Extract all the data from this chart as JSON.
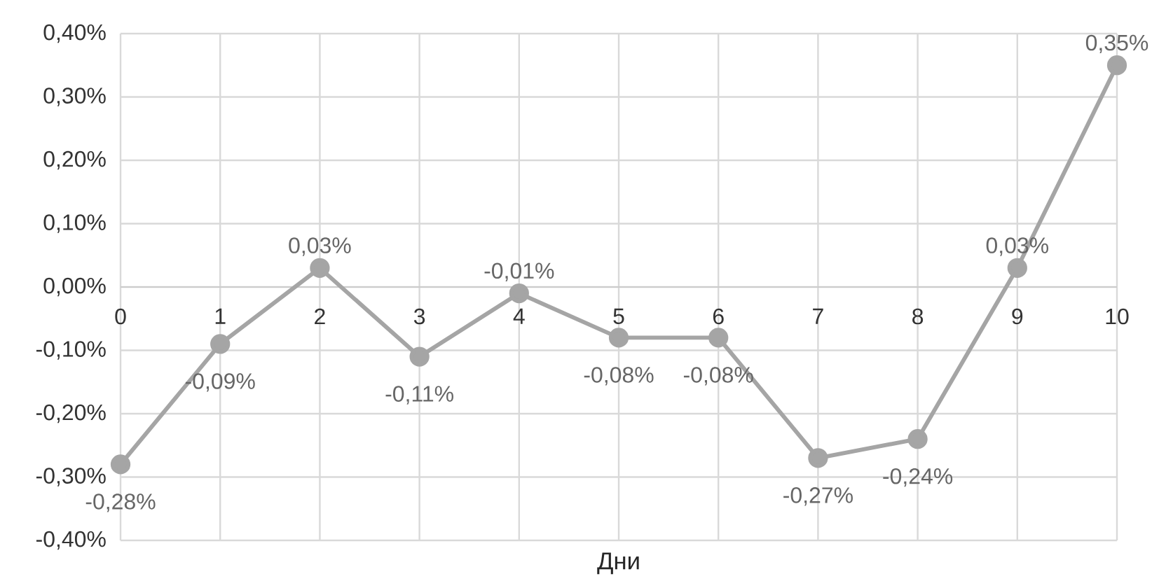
{
  "chart_data": {
    "type": "line",
    "xlabel": "Дни",
    "x": [
      0,
      1,
      2,
      3,
      4,
      5,
      6,
      7,
      8,
      9,
      10
    ],
    "series": [
      {
        "color": "#a5a5a5",
        "values": [
          -0.28,
          -0.09,
          0.03,
          -0.11,
          -0.01,
          -0.08,
          -0.08,
          -0.27,
          -0.24,
          0.03,
          0.35
        ],
        "value_labels": [
          "-0,28%",
          "-0,09%",
          "0,03%",
          "-0,11%",
          "-0,01%",
          "-0,08%",
          "-0,08%",
          "-0,27%",
          "-0,24%",
          "0,03%",
          "0,35%"
        ]
      }
    ],
    "xlim": [
      0,
      10
    ],
    "xticks": [
      0,
      1,
      2,
      3,
      4,
      5,
      6,
      7,
      8,
      9,
      10
    ],
    "ylim": [
      -0.4,
      0.4
    ],
    "yticks": [
      {
        "value": -0.4,
        "label": "-0,40%"
      },
      {
        "value": -0.3,
        "label": "-0,30%"
      },
      {
        "value": -0.2,
        "label": "-0,20%"
      },
      {
        "value": -0.1,
        "label": "-0,10%"
      },
      {
        "value": 0,
        "label": "0,00%"
      },
      {
        "value": 0.1,
        "label": "0,10%"
      },
      {
        "value": 0.2,
        "label": "0,20%"
      },
      {
        "value": 0.3,
        "label": "0,30%"
      },
      {
        "value": 0.4,
        "label": "0,40%"
      }
    ],
    "grid": true,
    "marker": "circle",
    "line_style": "solid"
  }
}
